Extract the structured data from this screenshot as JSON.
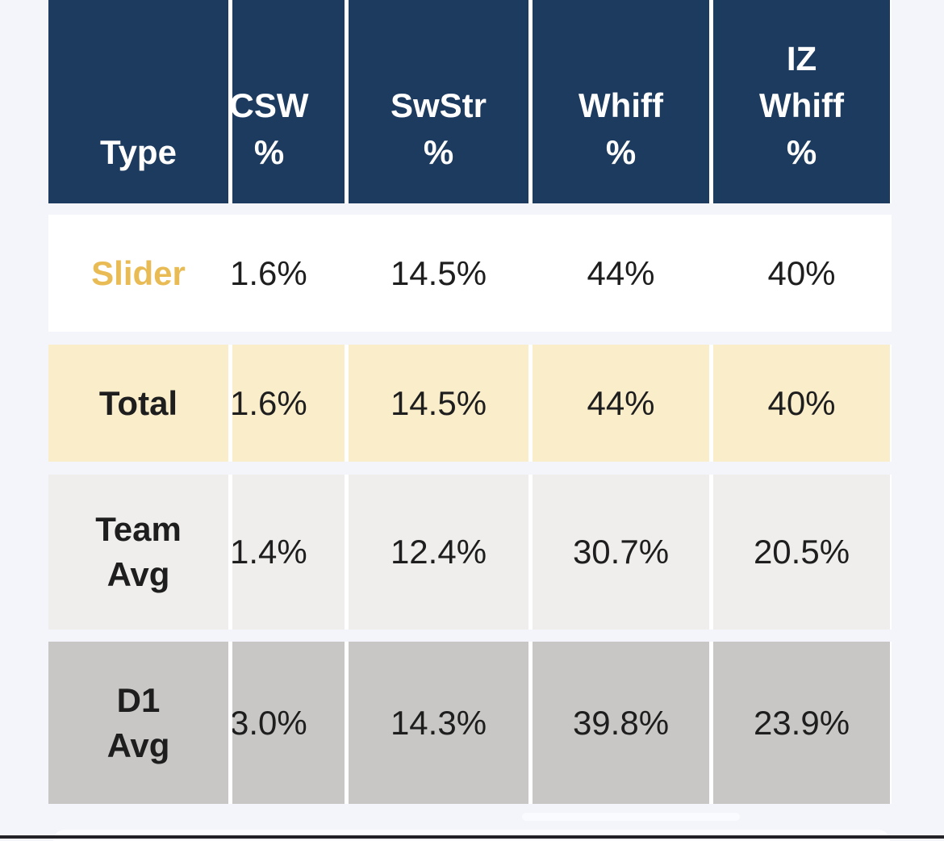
{
  "table": {
    "columns": [
      {
        "key": "type",
        "label": "Type"
      },
      {
        "key": "csw",
        "label": "CSW\n%"
      },
      {
        "key": "swstr",
        "label": "SwStr\n%"
      },
      {
        "key": "whiff",
        "label": "Whiff\n%"
      },
      {
        "key": "izwhiff",
        "label": "IZ\nWhiff\n%"
      }
    ],
    "rows": [
      {
        "type": "Slider",
        "csw": "1.6%",
        "swstr": "14.5%",
        "whiff": "44%",
        "izwhiff": "40%"
      },
      {
        "type": "Total",
        "csw": "1.6%",
        "swstr": "14.5%",
        "whiff": "44%",
        "izwhiff": "40%"
      },
      {
        "type": "Team\nAvg",
        "csw": "1.4%",
        "swstr": "12.4%",
        "whiff": "30.7%",
        "izwhiff": "20.5%"
      },
      {
        "type": "D1\nAvg",
        "csw": "3.0%",
        "swstr": "14.3%",
        "whiff": "39.8%",
        "izwhiff": "23.9%"
      }
    ]
  },
  "colors": {
    "header_bg": "#1d3a5f",
    "header_text": "#ffffff",
    "pitch_label_gold": "#e9bb54",
    "total_row_bg": "#faedca",
    "team_avg_row_bg": "#efeeec",
    "d1_avg_row_bg": "#c8c7c5",
    "page_bg": "#f4f5fa",
    "cell_gap": "#ffffff",
    "value_text": "#1e1e1e",
    "bottom_bar": "#222227"
  }
}
